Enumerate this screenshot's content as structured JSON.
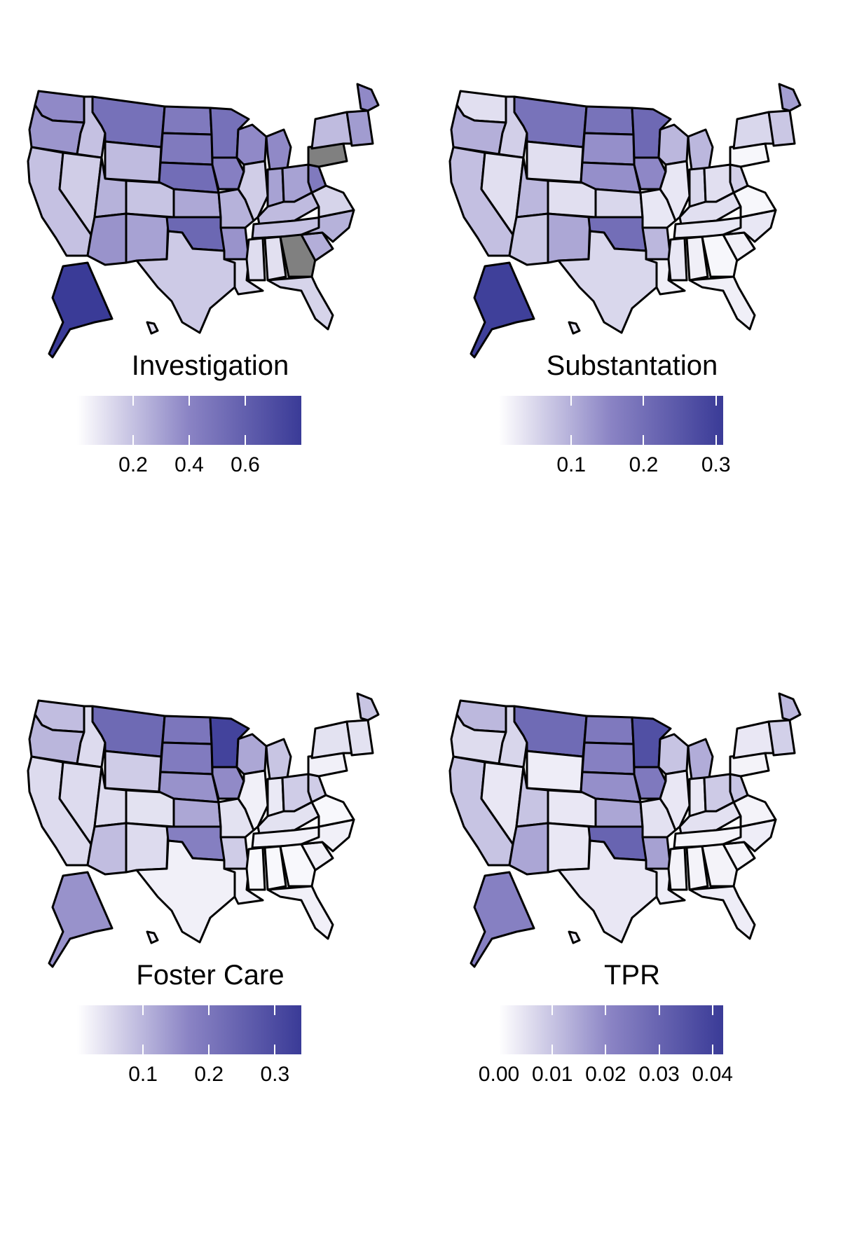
{
  "colors": {
    "low": "#ffffff",
    "high": "#3a3b97",
    "missing": "#808080",
    "border": "#000000"
  },
  "panels": [
    {
      "id": "investigation",
      "legend_title": "Investigation",
      "scale": {
        "min": 0.0,
        "max": 0.8
      },
      "ticks": [
        {
          "value": 0.2,
          "label": "0.2"
        },
        {
          "value": 0.4,
          "label": "0.4"
        },
        {
          "value": 0.6,
          "label": "0.6"
        }
      ],
      "states": {
        "WA": 0.38,
        "OR": 0.34,
        "CA": 0.2,
        "ID": 0.2,
        "NV": 0.16,
        "MT": 0.5,
        "WY": 0.22,
        "UT": 0.25,
        "AZ": 0.35,
        "CO": 0.19,
        "NM": 0.3,
        "ND": 0.45,
        "SD": 0.45,
        "NE": 0.52,
        "KS": 0.28,
        "OK": 0.55,
        "TX": 0.17,
        "MN": 0.5,
        "IA": 0.42,
        "MO": 0.25,
        "AR": 0.35,
        "LA": 0.12,
        "WI": 0.38,
        "IL": 0.16,
        "MI": 0.38,
        "IN": 0.3,
        "OH": 0.3,
        "KY": 0.22,
        "TN": 0.2,
        "MS": 0.11,
        "AL": 0.1,
        "GA": null,
        "FL": 0.14,
        "SC": 0.26,
        "NC": 0.25,
        "VA": 0.14,
        "WV": 0.45,
        "PA": null,
        "NY": 0.22,
        "ME": 0.38,
        "NE_states": 0.32,
        "AK": 0.8,
        "HI": 0.1
      }
    },
    {
      "id": "substantiation",
      "legend_title": "Substantation",
      "scale": {
        "min": 0.0,
        "max": 0.31
      },
      "ticks": [
        {
          "value": 0.1,
          "label": "0.1"
        },
        {
          "value": 0.2,
          "label": "0.2"
        },
        {
          "value": 0.3,
          "label": "0.3"
        }
      ],
      "states": {
        "WA": 0.04,
        "OR": 0.1,
        "CA": 0.08,
        "ID": 0.06,
        "NV": 0.04,
        "MT": 0.19,
        "WY": 0.04,
        "UT": 0.09,
        "AZ": 0.07,
        "CO": 0.04,
        "NM": 0.11,
        "ND": 0.19,
        "SD": 0.14,
        "NE": 0.14,
        "KS": 0.05,
        "OK": 0.2,
        "TX": 0.05,
        "MN": 0.21,
        "IA": 0.15,
        "MO": 0.03,
        "AR": 0.09,
        "LA": 0.02,
        "WI": 0.09,
        "IL": 0.03,
        "MI": 0.09,
        "IN": 0.05,
        "OH": 0.04,
        "KY": 0.04,
        "TN": 0.03,
        "MS": 0.03,
        "AL": 0.02,
        "GA": 0.01,
        "FL": 0.02,
        "SC": 0.02,
        "NC": 0.03,
        "VA": 0.01,
        "WV": 0.06,
        "PA": 0.01,
        "NY": 0.05,
        "ME": 0.12,
        "NE_states": 0.07,
        "AK": 0.3,
        "HI": 0.03
      }
    },
    {
      "id": "foster_care",
      "legend_title": "Foster Care",
      "scale": {
        "min": 0.0,
        "max": 0.34
      },
      "ticks": [
        {
          "value": 0.1,
          "label": "0.1"
        },
        {
          "value": 0.2,
          "label": "0.2"
        },
        {
          "value": 0.3,
          "label": "0.3"
        }
      ],
      "states": {
        "WA": 0.09,
        "OR": 0.1,
        "CA": 0.05,
        "ID": 0.05,
        "NV": 0.05,
        "MT": 0.23,
        "WY": 0.07,
        "UT": 0.05,
        "AZ": 0.09,
        "CO": 0.04,
        "NM": 0.05,
        "ND": 0.2,
        "SD": 0.19,
        "NE": 0.15,
        "KS": 0.12,
        "OK": 0.18,
        "TX": 0.02,
        "MN": 0.32,
        "IA": 0.16,
        "MO": 0.04,
        "AR": 0.07,
        "LA": 0.02,
        "WI": 0.12,
        "IL": 0.02,
        "MI": 0.08,
        "IN": 0.03,
        "OH": 0.07,
        "KY": 0.04,
        "TN": 0.02,
        "MS": 0.01,
        "AL": 0.01,
        "GA": 0.01,
        "FL": 0.02,
        "SC": 0.02,
        "NC": 0.02,
        "VA": 0.01,
        "WV": 0.07,
        "PA": 0.02,
        "NY": 0.04,
        "ME": 0.08,
        "NE_states": 0.04,
        "AK": 0.15,
        "HI": 0.02
      }
    },
    {
      "id": "tpr",
      "legend_title": "TPR",
      "scale": {
        "min": 0.0,
        "max": 0.042
      },
      "ticks": [
        {
          "value": 0.0,
          "label": "0.00"
        },
        {
          "value": 0.01,
          "label": "0.01"
        },
        {
          "value": 0.02,
          "label": "0.02"
        },
        {
          "value": 0.03,
          "label": "0.03"
        },
        {
          "value": 0.04,
          "label": "0.04"
        }
      ],
      "states": {
        "WA": 0.012,
        "OR": 0.006,
        "CA": 0.01,
        "ID": 0.007,
        "NV": 0.004,
        "MT": 0.028,
        "WY": 0.003,
        "UT": 0.01,
        "AZ": 0.015,
        "CO": 0.004,
        "NM": 0.004,
        "ND": 0.024,
        "SD": 0.022,
        "NE": 0.019,
        "KS": 0.015,
        "OK": 0.03,
        "TX": 0.004,
        "MN": 0.036,
        "IA": 0.024,
        "MO": 0.005,
        "AR": 0.016,
        "LA": 0.003,
        "WI": 0.01,
        "IL": 0.004,
        "MI": 0.014,
        "IN": 0.004,
        "OH": 0.009,
        "KY": 0.005,
        "TN": 0.002,
        "MS": 0.002,
        "AL": 0.002,
        "GA": 0.002,
        "FL": 0.003,
        "SC": 0.002,
        "NC": 0.003,
        "VA": 0.002,
        "WV": 0.01,
        "PA": 0.002,
        "NY": 0.004,
        "ME": 0.012,
        "NE_states": 0.008,
        "AK": 0.022,
        "HI": 0.003
      }
    }
  ]
}
